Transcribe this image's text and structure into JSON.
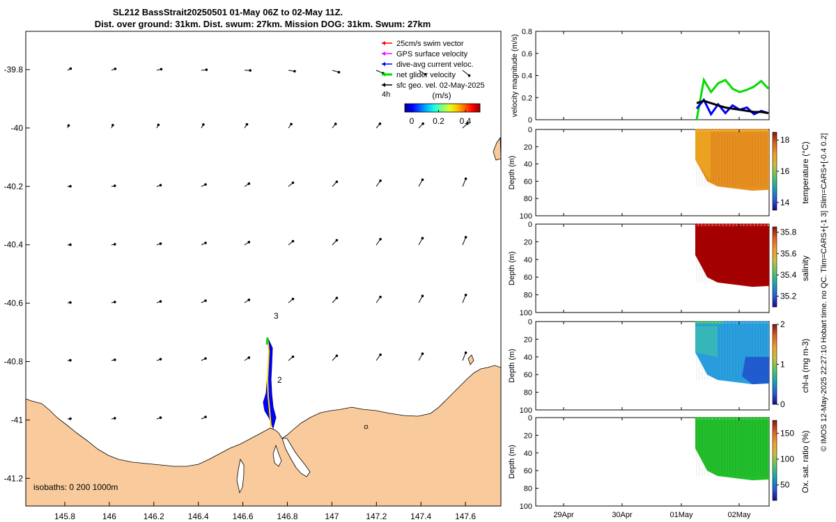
{
  "title": {
    "line1": "SL212 BassStrait20250501 01-May 06Z to 02-May 11Z.",
    "line2": "Dist. over ground: 31km. Dist. swum: 27km. Mission DOG: 31km. Swum: 27km"
  },
  "colors": {
    "land": "#f9cb9c",
    "swim": "#ff0000",
    "gps": "#ff00ff",
    "dive": "#0000ff",
    "net": "#00dd00",
    "sfc": "#000000",
    "salinity_fill": "#a80000",
    "oxygen_fill": "#22c02c",
    "temp_fill": "#e89020"
  },
  "legend": {
    "items": [
      {
        "label": "25cm/s swim vector",
        "color": "#ff0000"
      },
      {
        "label": "GPS surface velocity",
        "color": "#ff00ff"
      },
      {
        "label": "dive-avg current veloc.",
        "color": "#0000ff"
      },
      {
        "label": "net glider velocity",
        "color": "#00dd00"
      },
      {
        "label": "sfc geo. vel. 02-May-2025",
        "color": "#000000"
      }
    ],
    "interval": "4h",
    "units": "(m/s)",
    "colorbar_ticks": [
      "0",
      "0.2",
      "0.4"
    ]
  },
  "map": {
    "x_ticks": [
      "145.8",
      "146",
      "146.2",
      "146.4",
      "146.6",
      "146.8",
      "147",
      "147.2",
      "147.4",
      "147.6"
    ],
    "y_ticks": [
      "-39.8",
      "-40",
      "-40.2",
      "-40.4",
      "-40.6",
      "-40.8",
      "-41",
      "-41.2"
    ],
    "isobaths_text": "isobaths: 0   200  1000m",
    "waypoint_labels": [
      "3",
      "2"
    ]
  },
  "chart_data": [
    {
      "type": "line",
      "title": "velocity magnitude",
      "ylabel": "velocity magnitude (m/s)",
      "ylim": [
        0,
        0.8
      ],
      "yticks": [
        "0",
        "0.2",
        "0.4",
        "0.6",
        "0.8"
      ],
      "x": [
        0,
        0.1,
        0.2,
        0.3,
        0.4,
        0.5,
        0.6,
        0.7,
        0.8,
        0.9,
        1.0
      ],
      "series": [
        {
          "name": "net glider velocity",
          "values": [
            0.0,
            0.36,
            0.25,
            0.33,
            0.36,
            0.28,
            0.25,
            0.27,
            0.3,
            0.35,
            0.28
          ]
        },
        {
          "name": "dive-avg current veloc.",
          "values": [
            0.1,
            0.18,
            0.05,
            0.14,
            0.06,
            0.13,
            0.09,
            0.11,
            0.05,
            0.08,
            0.06
          ]
        },
        {
          "name": "sfc geo. vel.",
          "values": [
            0.15,
            0.17,
            0.15,
            0.13,
            0.11,
            0.1,
            0.09,
            0.08,
            0.07,
            0.07,
            0.06
          ]
        }
      ]
    },
    {
      "type": "heatmap",
      "ylabel": "Depth (m)",
      "yticks": [
        "0",
        "20",
        "40",
        "60",
        "80",
        "100"
      ],
      "colorbar_label": "temperature (°C)",
      "colorbar_ticks": [
        "14",
        "16",
        "18"
      ],
      "range": [
        13.5,
        18.5
      ],
      "typical_value": 17.3
    },
    {
      "type": "heatmap",
      "ylabel": "Depth (m)",
      "yticks": [
        "0",
        "20",
        "40",
        "60",
        "80",
        "100"
      ],
      "colorbar_label": "salinity",
      "colorbar_ticks": [
        "35.2",
        "35.4",
        "35.6",
        "35.8"
      ],
      "range": [
        35.1,
        35.85
      ],
      "typical_value": 35.85
    },
    {
      "type": "heatmap",
      "ylabel": "Depth (m)",
      "yticks": [
        "0",
        "20",
        "40",
        "60",
        "80",
        "100"
      ],
      "colorbar_label": "chl-a (mg m-3)",
      "colorbar_ticks": [
        "0",
        "1",
        "2"
      ],
      "range": [
        0,
        2
      ],
      "typical_value": 0.6
    },
    {
      "type": "heatmap",
      "ylabel": "Depth (m)",
      "yticks": [
        "0",
        "20",
        "40",
        "60",
        "80",
        "100"
      ],
      "colorbar_label": "Ox. sat. ratio (%)",
      "colorbar_ticks": [
        "50",
        "100",
        "150"
      ],
      "range": [
        20,
        175
      ],
      "typical_value": 100
    }
  ],
  "time_axis": {
    "ticks": [
      "29Apr",
      "30Apr",
      "01May",
      "02May"
    ]
  },
  "footer_note": "© IMOS 12-May-2025 22:27:10 Hobart time. no QC. Tlim=CARS+[-1 3] Slim=CARS+[-0.4 0.2]"
}
